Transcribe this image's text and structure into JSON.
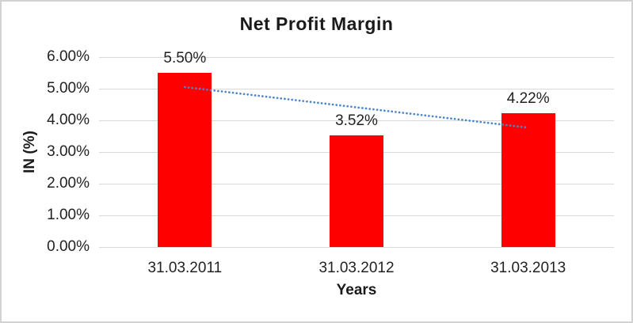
{
  "chart_data": {
    "type": "bar",
    "title": "Net Profit Margin",
    "xlabel": "Years",
    "ylabel": "IN (%)",
    "categories": [
      "31.03.2011",
      "31.03.2012",
      "31.03.2013"
    ],
    "series": [
      {
        "name": "Net Profit Margin",
        "values": [
          5.5,
          3.52,
          4.22
        ]
      }
    ],
    "data_labels": [
      "5.50%",
      "3.52%",
      "4.22%"
    ],
    "y_ticks": [
      "6.00%",
      "5.00%",
      "4.00%",
      "3.00%",
      "2.00%",
      "1.00%",
      "0.00%"
    ],
    "ylim": [
      0,
      6
    ],
    "grid": true,
    "legend": "none",
    "bar_color": "#ff0000",
    "gridline_color": "#d9d9d9",
    "trendline": {
      "type": "linear",
      "style": "dotted",
      "color": "#4a86c8",
      "start_value": 5.05,
      "end_value": 3.77
    }
  }
}
